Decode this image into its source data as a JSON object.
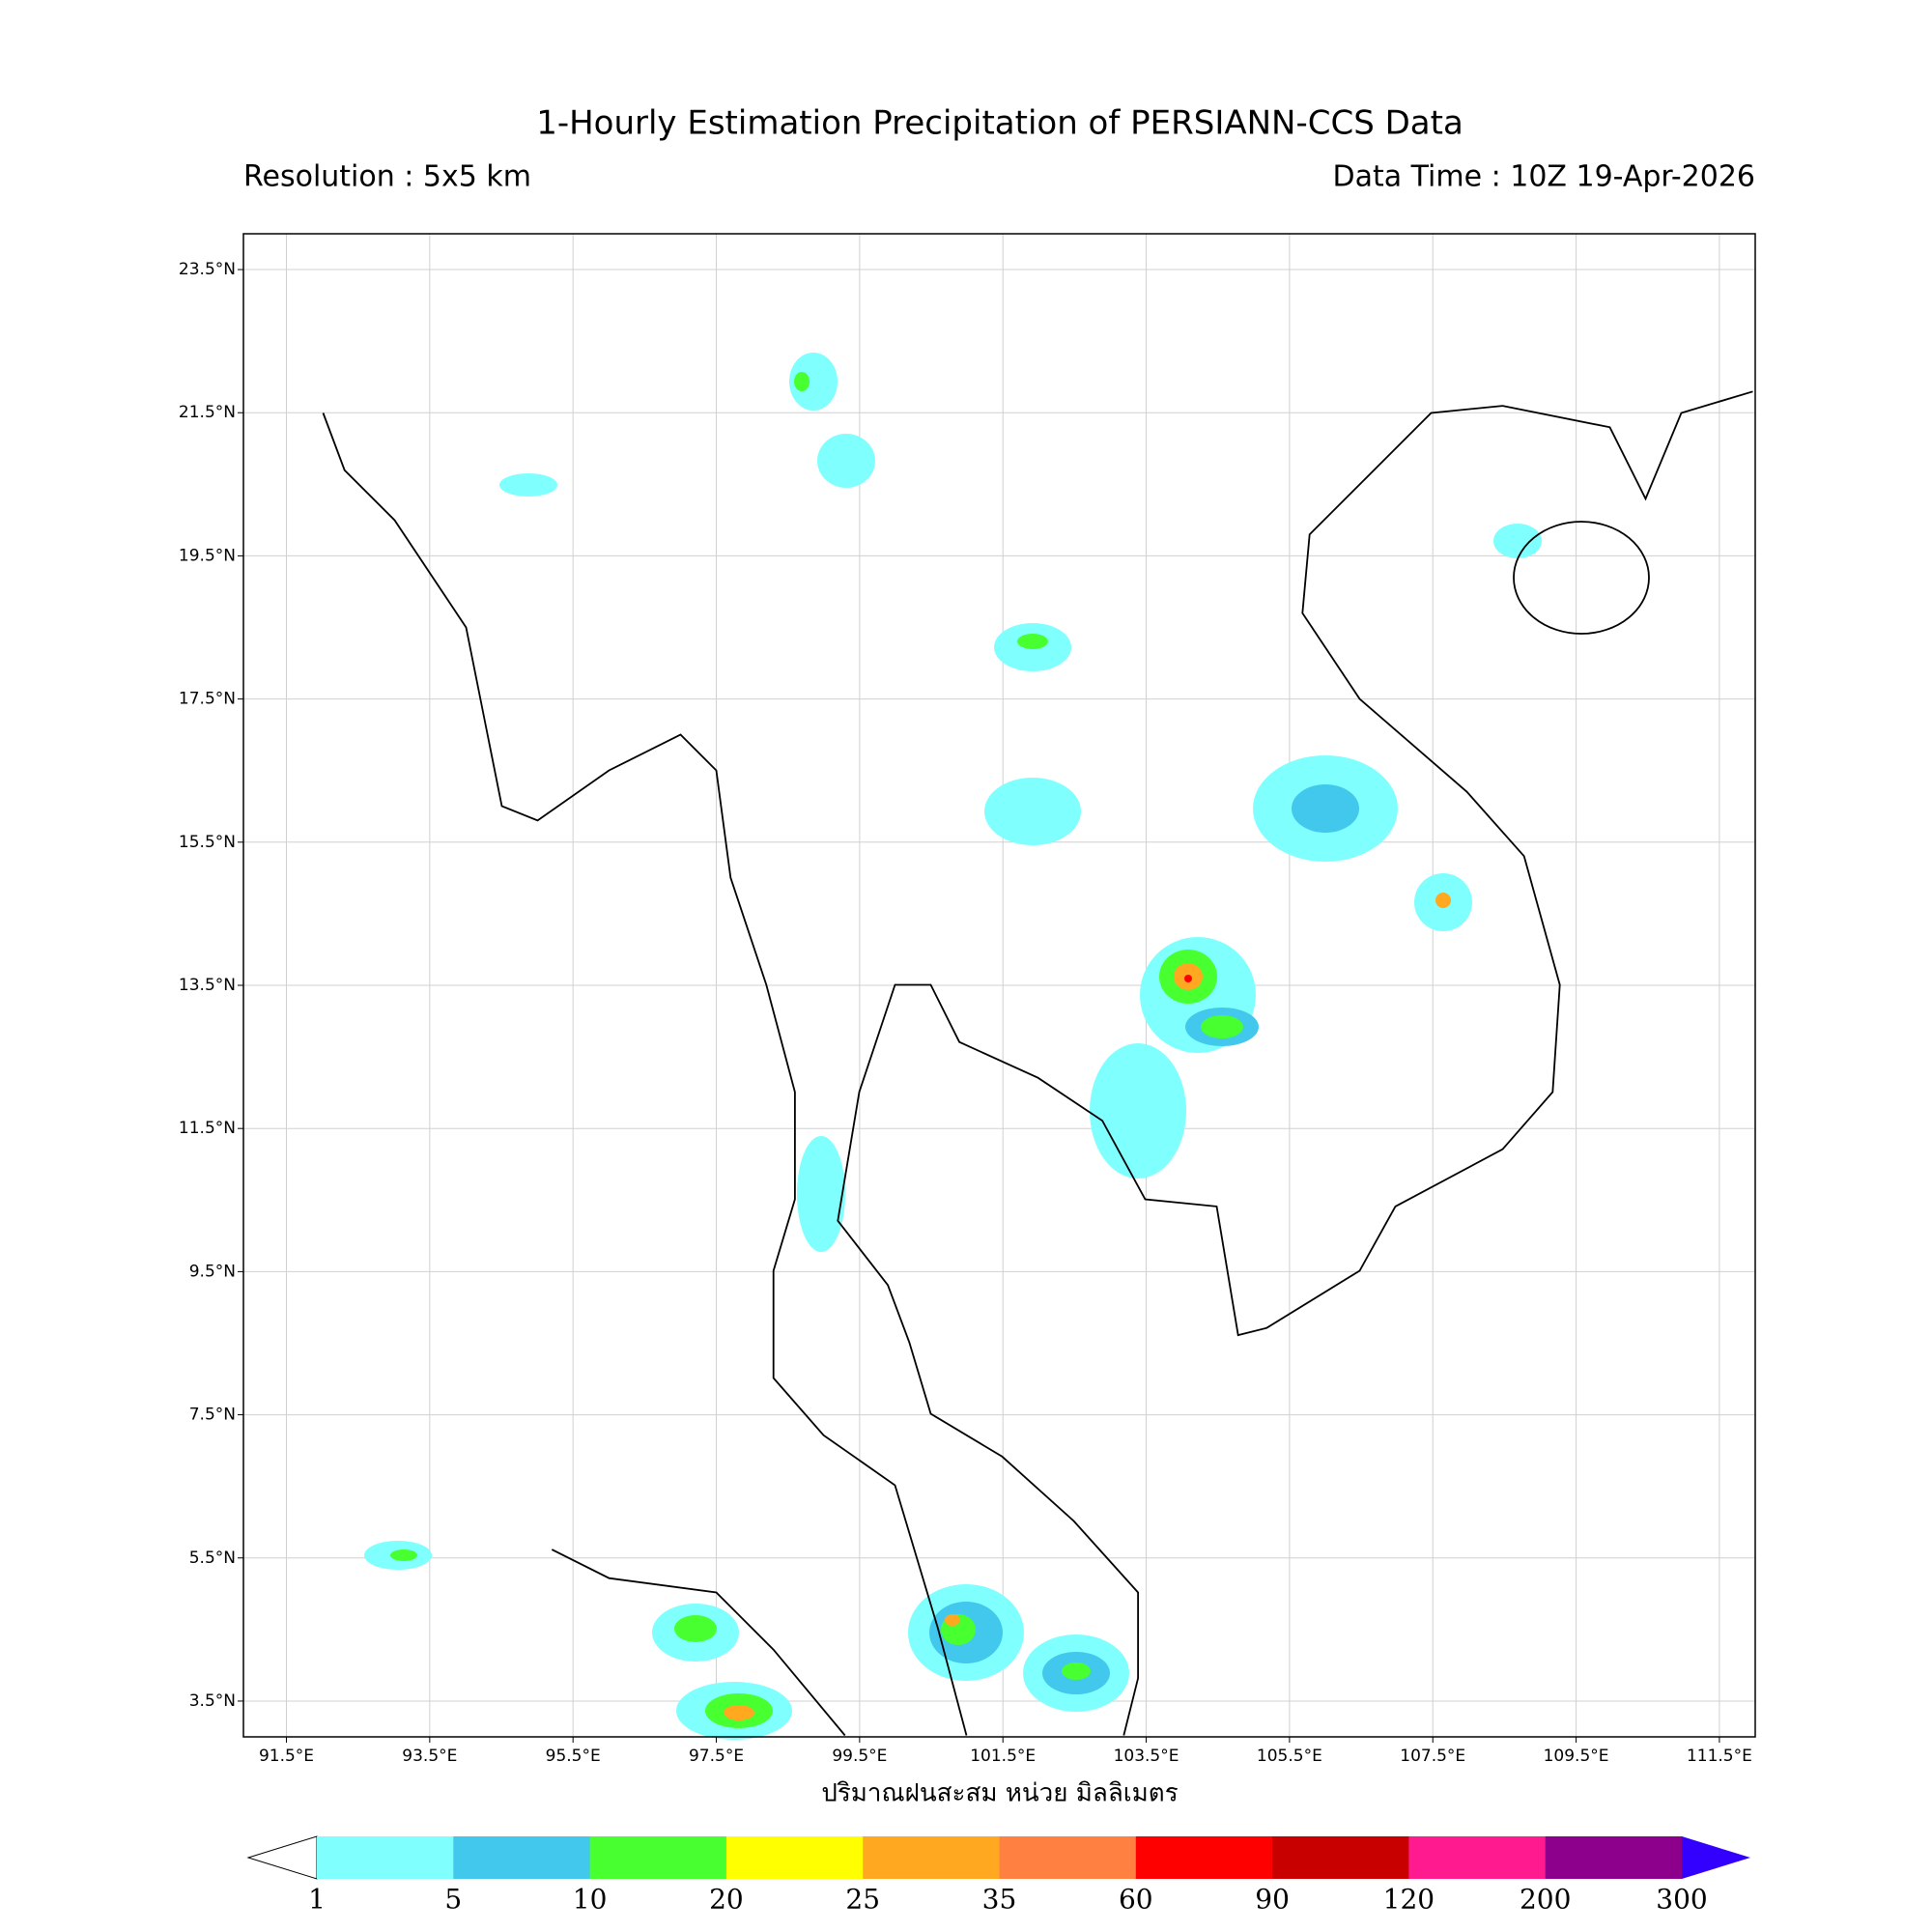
{
  "map": {
    "title": "1-Hourly Estimation Precipitation of PERSIANN-CCS Data",
    "resolution": "Resolution : 5x5 km",
    "data_time": "Data Time : 10Z 19-Apr-2026",
    "x_label": "ปริมาณฝนสะสม หน่วย มิลลิเมตร",
    "xlim": [
      90.9,
      112.0
    ],
    "ylim": [
      3.0,
      24.0
    ],
    "grid": true,
    "xticks": [
      {
        "value": 91.5,
        "label": "91.5°E"
      },
      {
        "value": 93.5,
        "label": "93.5°E"
      },
      {
        "value": 95.5,
        "label": "95.5°E"
      },
      {
        "value": 97.5,
        "label": "97.5°E"
      },
      {
        "value": 99.5,
        "label": "99.5°E"
      },
      {
        "value": 101.5,
        "label": "101.5°E"
      },
      {
        "value": 103.5,
        "label": "103.5°E"
      },
      {
        "value": 105.5,
        "label": "105.5°E"
      },
      {
        "value": 107.5,
        "label": "107.5°E"
      },
      {
        "value": 109.5,
        "label": "109.5°E"
      },
      {
        "value": 111.5,
        "label": "111.5°E"
      }
    ],
    "yticks": [
      {
        "value": 23.5,
        "label": "23.5°N"
      },
      {
        "value": 21.5,
        "label": "21.5°N"
      },
      {
        "value": 19.5,
        "label": "19.5°N"
      },
      {
        "value": 17.5,
        "label": "17.5°N"
      },
      {
        "value": 15.5,
        "label": "15.5°N"
      },
      {
        "value": 13.5,
        "label": "13.5°N"
      },
      {
        "value": 11.5,
        "label": "11.5°N"
      },
      {
        "value": 9.5,
        "label": "9.5°N"
      },
      {
        "value": 7.5,
        "label": "7.5°N"
      },
      {
        "value": 5.5,
        "label": "5.5°N"
      },
      {
        "value": 3.5,
        "label": "3.5°N"
      }
    ],
    "colorbar": {
      "boundaries": [
        1,
        5,
        10,
        20,
        25,
        35,
        60,
        90,
        120,
        200,
        300
      ],
      "colors": [
        "#80ffff",
        "#41c8ec",
        "#48ff2f",
        "#ffff00",
        "#ffa820",
        "#ff8040",
        "#ff0000",
        "#c80000",
        "#ff1a90",
        "#8c008c"
      ],
      "under_color": "#ffffff",
      "over_color": "#3300ff"
    }
  }
}
